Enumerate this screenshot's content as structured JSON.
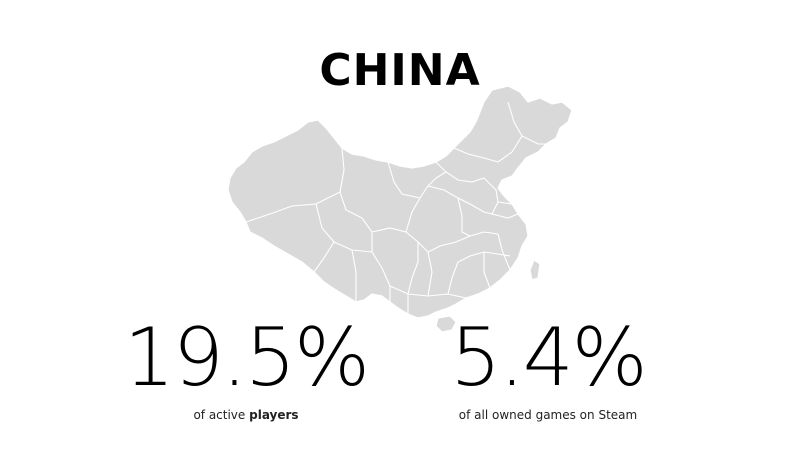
{
  "title": "CHINA",
  "map": {
    "icon": "china-provinces-map",
    "fill_color": "#d9d9d9",
    "border_color": "#ffffff"
  },
  "stats": [
    {
      "value": "19.5%",
      "caption_prefix": "of active ",
      "caption_bold": "players",
      "caption_suffix": ""
    },
    {
      "value": "5.4%",
      "caption_prefix": "of all owned games on Steam",
      "caption_bold": "",
      "caption_suffix": ""
    }
  ],
  "colors": {
    "background": "#ffffff",
    "text": "#000000"
  }
}
